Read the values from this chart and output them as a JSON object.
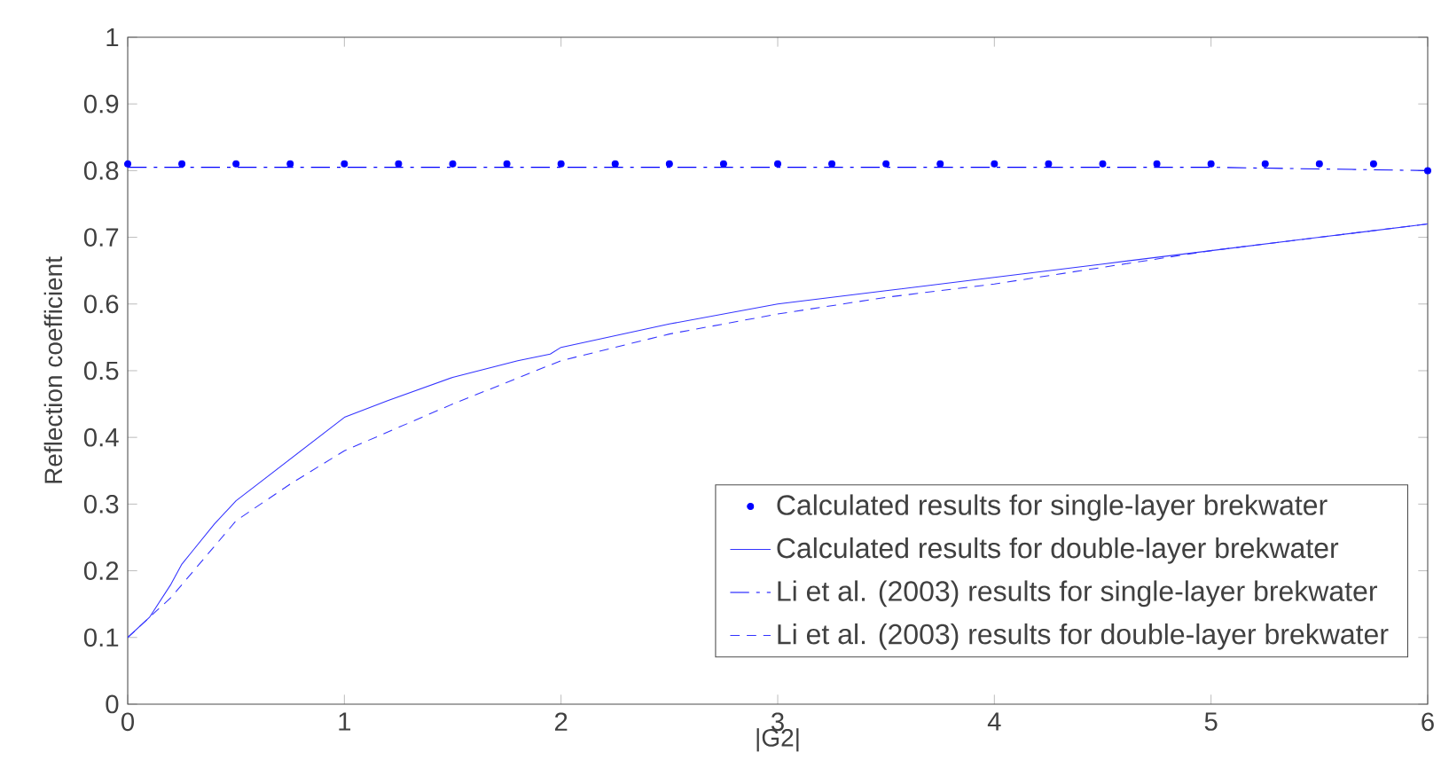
{
  "chart_data": {
    "type": "line",
    "xlabel": "|G2|",
    "ylabel": "Reflection coefficient",
    "xlim": [
      0,
      6
    ],
    "ylim": [
      0,
      1
    ],
    "xticks": [
      0,
      1,
      2,
      3,
      4,
      5,
      6
    ],
    "yticks": [
      0,
      0.1,
      0.2,
      0.3,
      0.4,
      0.5,
      0.6,
      0.7,
      0.8,
      0.9,
      1
    ],
    "grid": false,
    "legend": "bottom right",
    "series": [
      {
        "name": "Calculated results for single-layer brekwater",
        "type": "scatter",
        "marker": "circle",
        "color": "#0000ff",
        "x": [
          0,
          0.25,
          0.5,
          0.75,
          1,
          1.25,
          1.5,
          1.75,
          2,
          2.25,
          2.5,
          2.75,
          3,
          3.25,
          3.5,
          3.75,
          4,
          4.25,
          4.5,
          4.75,
          5,
          5.25,
          5.5,
          5.75,
          6
        ],
        "values": [
          0.81,
          0.81,
          0.81,
          0.81,
          0.81,
          0.81,
          0.81,
          0.81,
          0.81,
          0.81,
          0.81,
          0.81,
          0.81,
          0.81,
          0.81,
          0.81,
          0.81,
          0.81,
          0.81,
          0.81,
          0.81,
          0.81,
          0.81,
          0.81,
          0.8
        ]
      },
      {
        "name": "Calculated results for double-layer brekwater",
        "line_style": "solid",
        "color": "#3333ff",
        "x": [
          0,
          0.1,
          0.2,
          0.25,
          0.3,
          0.4,
          0.5,
          0.6,
          0.8,
          1,
          1.2,
          1.5,
          1.8,
          1.95,
          2,
          2.5,
          3,
          3.5,
          4,
          4.5,
          5,
          5.5,
          6
        ],
        "values": [
          0.1,
          0.13,
          0.18,
          0.21,
          0.23,
          0.27,
          0.305,
          0.33,
          0.38,
          0.43,
          0.455,
          0.49,
          0.515,
          0.525,
          0.535,
          0.57,
          0.6,
          0.62,
          0.64,
          0.66,
          0.68,
          0.7,
          0.72
        ]
      },
      {
        "name": "Li et al. (2003) results for single-layer brekwater",
        "line_style": "dashdot",
        "color": "#0000ff",
        "x": [
          0,
          1,
          2,
          3,
          4,
          5,
          6
        ],
        "values": [
          0.805,
          0.805,
          0.805,
          0.805,
          0.805,
          0.805,
          0.8
        ]
      },
      {
        "name": "Li et al. (2003) results for double-layer brekwater",
        "line_style": "dashed",
        "color": "#3333ff",
        "x": [
          0,
          0.2,
          0.5,
          0.75,
          1,
          1.5,
          2,
          2.5,
          3,
          3.5,
          4,
          4.5,
          5,
          5.5,
          6
        ],
        "values": [
          0.1,
          0.16,
          0.275,
          0.33,
          0.38,
          0.45,
          0.515,
          0.555,
          0.585,
          0.61,
          0.63,
          0.655,
          0.68,
          0.7,
          0.72
        ]
      }
    ]
  }
}
